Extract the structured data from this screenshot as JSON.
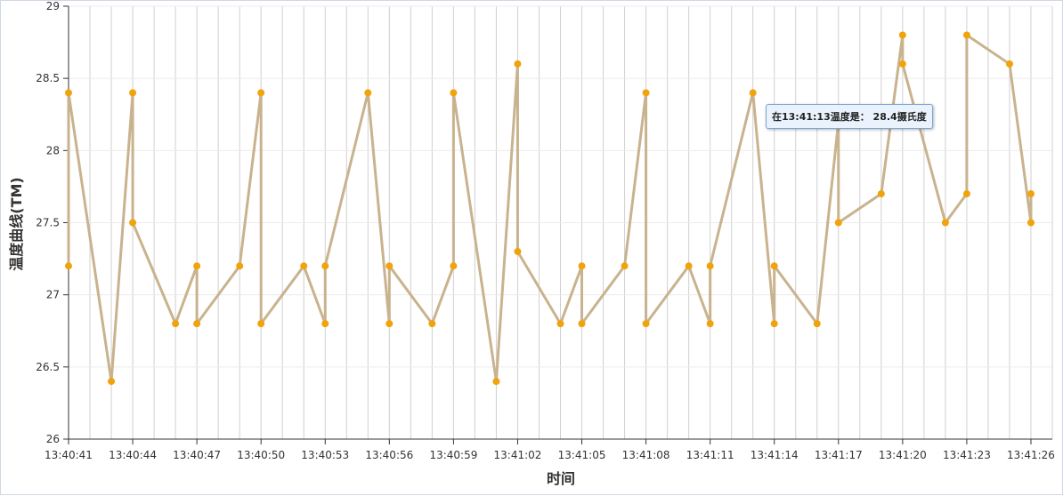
{
  "chart_data": {
    "type": "line",
    "y_label": "温度曲线(TM)",
    "x_label": "时间",
    "tooltip": "在13:41:13温度是： 28.4摄氏度",
    "x": [
      "13:40:41",
      "13:40:41",
      "13:40:43",
      "13:40:44",
      "13:40:44",
      "13:40:46",
      "13:40:47",
      "13:40:47",
      "13:40:49",
      "13:40:50",
      "13:40:50",
      "13:40:52",
      "13:40:53",
      "13:40:53",
      "13:40:55",
      "13:40:56",
      "13:40:56",
      "13:40:58",
      "13:40:59",
      "13:40:59",
      "13:41:01",
      "13:41:02",
      "13:41:02",
      "13:41:04",
      "13:41:05",
      "13:41:05",
      "13:41:07",
      "13:41:08",
      "13:41:08",
      "13:41:10",
      "13:41:11",
      "13:41:11",
      "13:41:13",
      "13:41:14",
      "13:41:14",
      "13:41:16",
      "13:41:17",
      "13:41:17",
      "13:41:19",
      "13:41:20",
      "13:41:20",
      "13:41:22",
      "13:41:23",
      "13:41:23",
      "13:41:25",
      "13:41:26",
      "13:41:26"
    ],
    "series": [
      {
        "name": "温度",
        "color": "#f0a30a",
        "line_color": "#c9b38e",
        "values": [
          27.2,
          28.4,
          26.4,
          28.4,
          27.5,
          26.8,
          27.2,
          26.8,
          27.2,
          28.4,
          26.8,
          27.2,
          26.8,
          27.2,
          28.4,
          26.8,
          27.2,
          26.8,
          27.2,
          28.4,
          26.4,
          28.6,
          27.3,
          26.8,
          27.2,
          26.8,
          27.2,
          28.4,
          26.8,
          27.2,
          26.8,
          27.2,
          28.4,
          26.8,
          27.2,
          26.8,
          28.2,
          27.5,
          27.7,
          28.8,
          28.6,
          27.5,
          27.7,
          28.8,
          28.6,
          27.5,
          27.7
        ]
      }
    ],
    "xlim": [
      "13:40:41",
      "13:41:27"
    ],
    "xticks": [
      "13:40:41",
      "13:40:44",
      "13:40:47",
      "13:40:50",
      "13:40:53",
      "13:40:56",
      "13:40:59",
      "13:41:02",
      "13:41:05",
      "13:41:08",
      "13:41:11",
      "13:41:14",
      "13:41:17",
      "13:41:20",
      "13:41:23",
      "13:41:26"
    ],
    "ylim": [
      26,
      29
    ],
    "yticks": [
      26,
      26.5,
      27,
      27.5,
      28,
      28.5,
      29
    ],
    "grid": true
  }
}
